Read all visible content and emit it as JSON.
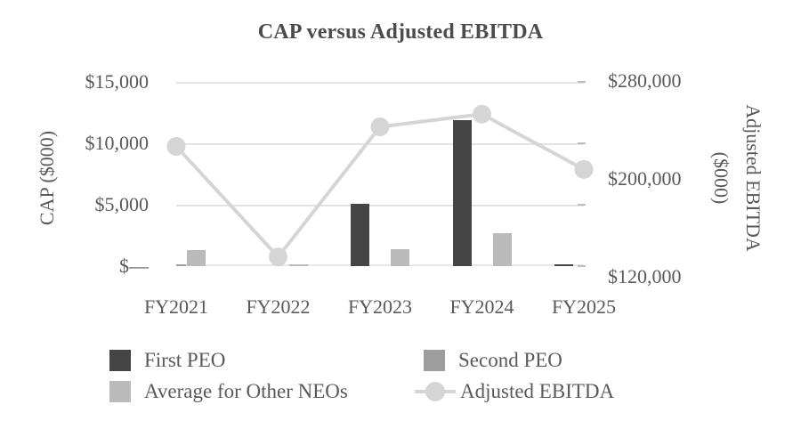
{
  "title": "CAP versus Adjusted EBITDA",
  "chart_data": {
    "type": "combo-bar-line",
    "title": "CAP versus Adjusted EBITDA",
    "categories": [
      "FY2021",
      "FY2022",
      "FY2023",
      "FY2024",
      "FY2025"
    ],
    "series": [
      {
        "name": "First PEO",
        "type": "bar",
        "axis": "left",
        "color": "#454545",
        "values": [
          0,
          0,
          5100,
          11900,
          150
        ]
      },
      {
        "name": "Second PEO",
        "type": "bar",
        "axis": "left",
        "color": "#9d9d9d",
        "values": [
          150,
          0,
          0,
          0,
          0
        ]
      },
      {
        "name": "Average for Other NEOs",
        "type": "bar",
        "axis": "left",
        "color": "#bababa",
        "values": [
          1300,
          150,
          1400,
          2700,
          0
        ]
      },
      {
        "name": "Adjusted EBITDA",
        "type": "line",
        "axis": "right",
        "color": "#d5d5d5",
        "values": [
          224000,
          128000,
          241000,
          252000,
          204000
        ]
      }
    ],
    "left_axis": {
      "title": "CAP ($000)",
      "min": 0,
      "max": 15000,
      "tick_labels_top_to_bottom": [
        "$15,000",
        "$10,000",
        "$5,000",
        "$—"
      ]
    },
    "right_axis": {
      "title_line1": "Adjusted EBITDA",
      "title_line2": "($000)",
      "min": 120000,
      "max": 280000,
      "tick_labels_top_to_bottom": [
        "$280,000",
        "$200,000",
        "$120,000"
      ]
    },
    "grid": true,
    "legend_position": "bottom"
  },
  "colors": {
    "text": "#595959",
    "title_text": "#4c4c4c",
    "gridline": "#e3e3e3",
    "axis_line": "#e8e8e8",
    "tick_mark": "#bdbdbd",
    "background": "#ffffff"
  }
}
